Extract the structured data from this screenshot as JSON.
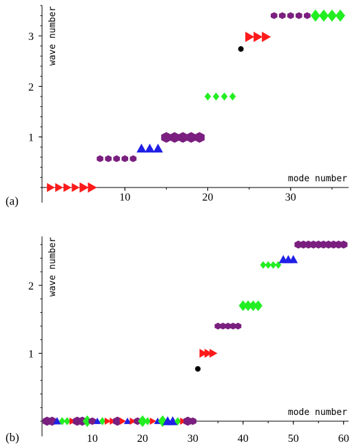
{
  "colors": {
    "red": "#ff1a1a",
    "purple": "#7a1f7f",
    "blue": "#1f1fe6",
    "green": "#22ee22",
    "black": "#000000"
  },
  "chart_data": [
    {
      "type": "scatter",
      "panel_label": "(a)",
      "xlabel": "mode number",
      "ylabel": "wave number",
      "xlim": [
        0,
        37
      ],
      "ylim": [
        0,
        3.6
      ],
      "xticks": [
        10,
        20,
        30
      ],
      "yticks": [
        1,
        2,
        3
      ],
      "grid": false,
      "points": [
        {
          "x": 1,
          "y": 0,
          "marker": "triangle-right",
          "color": "red",
          "size": 1
        },
        {
          "x": 2,
          "y": 0,
          "marker": "triangle-right",
          "color": "red",
          "size": 1
        },
        {
          "x": 3,
          "y": 0,
          "marker": "triangle-right",
          "color": "red",
          "size": 1
        },
        {
          "x": 4,
          "y": 0,
          "marker": "triangle-right",
          "color": "red",
          "size": 1
        },
        {
          "x": 5,
          "y": 0,
          "marker": "triangle-right",
          "color": "red",
          "size": 1.15
        },
        {
          "x": 6,
          "y": 0,
          "marker": "triangle-right",
          "color": "red",
          "size": 1.15
        },
        {
          "x": 7,
          "y": 0.57,
          "marker": "hexagon",
          "color": "purple",
          "size": 0.9
        },
        {
          "x": 8,
          "y": 0.57,
          "marker": "hexagon",
          "color": "purple",
          "size": 0.9
        },
        {
          "x": 9,
          "y": 0.57,
          "marker": "hexagon",
          "color": "purple",
          "size": 0.9
        },
        {
          "x": 10,
          "y": 0.57,
          "marker": "hexagon",
          "color": "purple",
          "size": 0.9
        },
        {
          "x": 11,
          "y": 0.57,
          "marker": "hexagon",
          "color": "purple",
          "size": 0.9
        },
        {
          "x": 12,
          "y": 0.77,
          "marker": "triangle-up",
          "color": "blue",
          "size": 1.1
        },
        {
          "x": 13,
          "y": 0.77,
          "marker": "triangle-up",
          "color": "blue",
          "size": 1.1
        },
        {
          "x": 14,
          "y": 0.77,
          "marker": "triangle-up",
          "color": "blue",
          "size": 1.1
        },
        {
          "x": 15,
          "y": 0.99,
          "marker": "hexagon",
          "color": "purple",
          "size": 1.4
        },
        {
          "x": 16,
          "y": 0.99,
          "marker": "hexagon",
          "color": "purple",
          "size": 1.4
        },
        {
          "x": 17,
          "y": 0.99,
          "marker": "hexagon",
          "color": "purple",
          "size": 1.4
        },
        {
          "x": 18,
          "y": 0.99,
          "marker": "hexagon",
          "color": "purple",
          "size": 1.4
        },
        {
          "x": 19,
          "y": 0.99,
          "marker": "hexagon",
          "color": "purple",
          "size": 1.4
        },
        {
          "x": 20,
          "y": 1.8,
          "marker": "diamond",
          "color": "green",
          "size": 0.9
        },
        {
          "x": 21,
          "y": 1.8,
          "marker": "diamond",
          "color": "green",
          "size": 0.9
        },
        {
          "x": 22,
          "y": 1.8,
          "marker": "diamond",
          "color": "green",
          "size": 0.9
        },
        {
          "x": 23,
          "y": 1.8,
          "marker": "diamond",
          "color": "green",
          "size": 0.9
        },
        {
          "x": 24,
          "y": 2.74,
          "marker": "circle",
          "color": "black",
          "size": 1
        },
        {
          "x": 25,
          "y": 2.98,
          "marker": "triangle-right",
          "color": "red",
          "size": 1.15
        },
        {
          "x": 26,
          "y": 2.98,
          "marker": "triangle-right",
          "color": "red",
          "size": 1.15
        },
        {
          "x": 27,
          "y": 2.98,
          "marker": "triangle-right",
          "color": "red",
          "size": 1.15
        },
        {
          "x": 28,
          "y": 3.4,
          "marker": "hexagon",
          "color": "purple",
          "size": 0.9
        },
        {
          "x": 29,
          "y": 3.4,
          "marker": "hexagon",
          "color": "purple",
          "size": 0.9
        },
        {
          "x": 30,
          "y": 3.4,
          "marker": "hexagon",
          "color": "purple",
          "size": 0.9
        },
        {
          "x": 31,
          "y": 3.4,
          "marker": "hexagon",
          "color": "purple",
          "size": 0.9
        },
        {
          "x": 32,
          "y": 3.4,
          "marker": "hexagon",
          "color": "purple",
          "size": 0.9
        },
        {
          "x": 33,
          "y": 3.4,
          "marker": "diamond",
          "color": "green",
          "size": 1.35
        },
        {
          "x": 34,
          "y": 3.4,
          "marker": "diamond",
          "color": "green",
          "size": 1.35
        },
        {
          "x": 35,
          "y": 3.4,
          "marker": "diamond",
          "color": "green",
          "size": 1.35
        },
        {
          "x": 36,
          "y": 3.4,
          "marker": "diamond",
          "color": "green",
          "size": 1.35
        }
      ]
    },
    {
      "type": "scatter",
      "panel_label": "(b)",
      "xlabel": "mode number",
      "ylabel": "wave number",
      "xlim": [
        0,
        61
      ],
      "ylim": [
        0,
        2.72
      ],
      "xticks": [
        10,
        20,
        30,
        40,
        50,
        60
      ],
      "yticks": [
        1,
        2
      ],
      "grid": false,
      "points": [
        {
          "x": 1,
          "y": 0,
          "marker": "hexagon",
          "color": "purple",
          "size": 1.2
        },
        {
          "x": 2,
          "y": 0,
          "marker": "hexagon",
          "color": "purple",
          "size": 1.2
        },
        {
          "x": 3,
          "y": 0,
          "marker": "triangle-up",
          "color": "blue",
          "size": 0.9
        },
        {
          "x": 4,
          "y": 0,
          "marker": "diamond",
          "color": "green",
          "size": 0.9
        },
        {
          "x": 5,
          "y": 0,
          "marker": "diamond",
          "color": "green",
          "size": 0.9
        },
        {
          "x": 6,
          "y": 0,
          "marker": "triangle-right",
          "color": "red",
          "size": 0.8
        },
        {
          "x": 7,
          "y": 0,
          "marker": "hexagon",
          "color": "purple",
          "size": 1.2
        },
        {
          "x": 8,
          "y": 0,
          "marker": "hexagon",
          "color": "purple",
          "size": 1.2
        },
        {
          "x": 9,
          "y": 0,
          "marker": "diamond",
          "color": "green",
          "size": 1.3
        },
        {
          "x": 10,
          "y": 0,
          "marker": "hexagon",
          "color": "purple",
          "size": 1.0
        },
        {
          "x": 11,
          "y": 0,
          "marker": "triangle-up",
          "color": "blue",
          "size": 0.8
        },
        {
          "x": 12,
          "y": 0,
          "marker": "diamond",
          "color": "green",
          "size": 0.9
        },
        {
          "x": 13,
          "y": 0,
          "marker": "triangle-right",
          "color": "red",
          "size": 0.8
        },
        {
          "x": 14,
          "y": 0,
          "marker": "triangle-right",
          "color": "red",
          "size": 0.8
        },
        {
          "x": 15,
          "y": 0,
          "marker": "hexagon",
          "color": "purple",
          "size": 1.2
        },
        {
          "x": 16,
          "y": 0,
          "marker": "triangle-right",
          "color": "red",
          "size": 0.8
        },
        {
          "x": 17,
          "y": 0,
          "marker": "triangle-up",
          "color": "blue",
          "size": 0.8
        },
        {
          "x": 18,
          "y": 0,
          "marker": "triangle-right",
          "color": "red",
          "size": 0.8
        },
        {
          "x": 19,
          "y": 0,
          "marker": "hexagon",
          "color": "purple",
          "size": 1.0
        },
        {
          "x": 20,
          "y": 0,
          "marker": "diamond",
          "color": "green",
          "size": 1.3
        },
        {
          "x": 21,
          "y": 0,
          "marker": "diamond",
          "color": "green",
          "size": 0.9
        },
        {
          "x": 22,
          "y": 0,
          "marker": "triangle-right",
          "color": "red",
          "size": 0.8
        },
        {
          "x": 23,
          "y": 0,
          "marker": "triangle-up",
          "color": "blue",
          "size": 0.8
        },
        {
          "x": 24,
          "y": 0,
          "marker": "diamond",
          "color": "green",
          "size": 1.3
        },
        {
          "x": 25,
          "y": 0,
          "marker": "triangle-up",
          "color": "blue",
          "size": 1.1
        },
        {
          "x": 26,
          "y": 0,
          "marker": "triangle-up",
          "color": "blue",
          "size": 1.1
        },
        {
          "x": 27,
          "y": 0,
          "marker": "diamond",
          "color": "green",
          "size": 0.9
        },
        {
          "x": 28,
          "y": 0,
          "marker": "triangle-right",
          "color": "red",
          "size": 0.8
        },
        {
          "x": 29,
          "y": 0,
          "marker": "hexagon",
          "color": "purple",
          "size": 1.2
        },
        {
          "x": 30,
          "y": 0,
          "marker": "hexagon",
          "color": "purple",
          "size": 1.0
        },
        {
          "x": 31,
          "y": 0.77,
          "marker": "circle",
          "color": "black",
          "size": 1
        },
        {
          "x": 32,
          "y": 1.0,
          "marker": "triangle-right",
          "color": "red",
          "size": 1.0
        },
        {
          "x": 33,
          "y": 1.0,
          "marker": "triangle-right",
          "color": "red",
          "size": 1.0
        },
        {
          "x": 34,
          "y": 1.0,
          "marker": "triangle-right",
          "color": "red",
          "size": 1.0
        },
        {
          "x": 35,
          "y": 1.4,
          "marker": "hexagon",
          "color": "purple",
          "size": 0.9
        },
        {
          "x": 36,
          "y": 1.4,
          "marker": "hexagon",
          "color": "purple",
          "size": 0.9
        },
        {
          "x": 37,
          "y": 1.4,
          "marker": "hexagon",
          "color": "purple",
          "size": 0.9
        },
        {
          "x": 38,
          "y": 1.4,
          "marker": "hexagon",
          "color": "purple",
          "size": 0.9
        },
        {
          "x": 39,
          "y": 1.4,
          "marker": "hexagon",
          "color": "purple",
          "size": 0.9
        },
        {
          "x": 40,
          "y": 1.7,
          "marker": "diamond",
          "color": "green",
          "size": 1.2
        },
        {
          "x": 41,
          "y": 1.7,
          "marker": "diamond",
          "color": "green",
          "size": 1.2
        },
        {
          "x": 42,
          "y": 1.7,
          "marker": "diamond",
          "color": "green",
          "size": 1.2
        },
        {
          "x": 43,
          "y": 1.7,
          "marker": "diamond",
          "color": "green",
          "size": 1.2
        },
        {
          "x": 44,
          "y": 2.3,
          "marker": "diamond",
          "color": "green",
          "size": 0.85
        },
        {
          "x": 45,
          "y": 2.3,
          "marker": "diamond",
          "color": "green",
          "size": 0.85
        },
        {
          "x": 46,
          "y": 2.3,
          "marker": "diamond",
          "color": "green",
          "size": 0.85
        },
        {
          "x": 47,
          "y": 2.3,
          "marker": "diamond",
          "color": "green",
          "size": 0.85
        },
        {
          "x": 48,
          "y": 2.38,
          "marker": "triangle-up",
          "color": "blue",
          "size": 1.0
        },
        {
          "x": 49,
          "y": 2.38,
          "marker": "triangle-up",
          "color": "blue",
          "size": 1.0
        },
        {
          "x": 50,
          "y": 2.38,
          "marker": "triangle-up",
          "color": "blue",
          "size": 1.0
        },
        {
          "x": 51,
          "y": 2.6,
          "marker": "hexagon",
          "color": "purple",
          "size": 1.05
        },
        {
          "x": 52,
          "y": 2.6,
          "marker": "hexagon",
          "color": "purple",
          "size": 1.05
        },
        {
          "x": 53,
          "y": 2.6,
          "marker": "hexagon",
          "color": "purple",
          "size": 1.05
        },
        {
          "x": 54,
          "y": 2.6,
          "marker": "hexagon",
          "color": "purple",
          "size": 1.05
        },
        {
          "x": 55,
          "y": 2.6,
          "marker": "hexagon",
          "color": "purple",
          "size": 1.05
        },
        {
          "x": 56,
          "y": 2.6,
          "marker": "hexagon",
          "color": "purple",
          "size": 1.05
        },
        {
          "x": 57,
          "y": 2.6,
          "marker": "hexagon",
          "color": "purple",
          "size": 1.05
        },
        {
          "x": 58,
          "y": 2.6,
          "marker": "hexagon",
          "color": "purple",
          "size": 1.05
        },
        {
          "x": 59,
          "y": 2.6,
          "marker": "hexagon",
          "color": "purple",
          "size": 1.05
        },
        {
          "x": 60,
          "y": 2.6,
          "marker": "hexagon",
          "color": "purple",
          "size": 1.05
        }
      ]
    }
  ]
}
